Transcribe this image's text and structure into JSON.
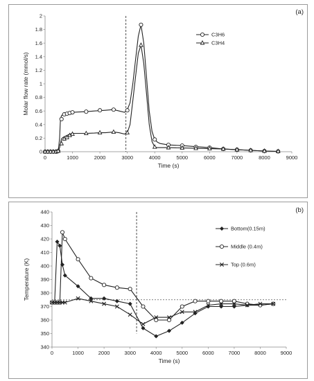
{
  "chart_data": [
    {
      "type": "line",
      "panel_tag": "(a)",
      "xlabel": "Time (s)",
      "ylabel": "Molar flow rate (mmol/s)",
      "xlim": [
        0,
        9000
      ],
      "ylim": [
        0,
        2
      ],
      "xticks": [
        "0",
        "1000",
        "2000",
        "3000",
        "4000",
        "5000",
        "6000",
        "7000",
        "8000",
        "9000"
      ],
      "yticks": [
        "0",
        "0.2",
        "0.4",
        "0.6",
        "0.8",
        "1",
        "1.2",
        "1.4",
        "1.6",
        "1.8",
        "2"
      ],
      "grid": false,
      "legend_position": "top-right",
      "vline_x": 2950,
      "series": [
        {
          "name": "C3H6",
          "marker": "circle",
          "line_x": [
            0,
            450,
            480,
            530,
            560,
            600,
            650,
            700,
            800,
            900,
            1000,
            1200,
            1500,
            1800,
            2000,
            2200,
            2500,
            2700,
            2900,
            3000,
            3100,
            3200,
            3300,
            3400,
            3500,
            3600,
            3700,
            3800,
            3900,
            4000,
            4100,
            4200,
            4500,
            5000,
            5500,
            6000,
            6500,
            7000,
            7500,
            8000,
            8500
          ],
          "line_y": [
            0,
            0,
            0.01,
            0.2,
            0.48,
            0.53,
            0.55,
            0.56,
            0.57,
            0.58,
            0.58,
            0.585,
            0.59,
            0.6,
            0.605,
            0.61,
            0.62,
            0.6,
            0.58,
            0.62,
            0.72,
            1.0,
            1.35,
            1.7,
            1.87,
            1.6,
            1.1,
            0.6,
            0.3,
            0.18,
            0.14,
            0.12,
            0.1,
            0.09,
            0.075,
            0.06,
            0.04,
            0.03,
            0.02,
            0.01,
            0.005
          ],
          "points_x": [
            0,
            100,
            200,
            300,
            400,
            480,
            600,
            700,
            800,
            900,
            1000,
            1500,
            2000,
            2500,
            3000,
            3500,
            4000,
            4500,
            5000,
            5500,
            6000,
            6500,
            7000,
            7500,
            8000,
            8500
          ],
          "points_y": [
            0,
            0,
            0,
            0,
            0,
            0.01,
            0.48,
            0.55,
            0.56,
            0.57,
            0.58,
            0.59,
            0.61,
            0.62,
            0.61,
            1.87,
            0.18,
            0.1,
            0.09,
            0.07,
            0.06,
            0.04,
            0.03,
            0.02,
            0.01,
            0.005
          ]
        },
        {
          "name": "C3H4",
          "marker": "triangle",
          "line_x": [
            0,
            450,
            480,
            530,
            560,
            600,
            650,
            700,
            800,
            900,
            1000,
            1200,
            1500,
            1800,
            2000,
            2200,
            2500,
            2700,
            2900,
            3000,
            3100,
            3200,
            3300,
            3400,
            3500,
            3600,
            3700,
            3800,
            3900,
            4000,
            4100,
            4200,
            4500,
            5000,
            5500,
            6000,
            6500,
            7000,
            7500,
            8000,
            8500
          ],
          "line_y": [
            0,
            0,
            0.01,
            0.06,
            0.12,
            0.19,
            0.21,
            0.22,
            0.24,
            0.26,
            0.27,
            0.27,
            0.27,
            0.275,
            0.28,
            0.28,
            0.29,
            0.28,
            0.26,
            0.28,
            0.4,
            0.75,
            1.1,
            1.45,
            1.57,
            1.3,
            0.85,
            0.4,
            0.15,
            0.07,
            0.06,
            0.06,
            0.06,
            0.055,
            0.05,
            0.045,
            0.04,
            0.03,
            0.02,
            0.01,
            0.005
          ],
          "points_x": [
            0,
            100,
            200,
            300,
            400,
            480,
            600,
            700,
            800,
            900,
            1000,
            1500,
            2000,
            2500,
            3000,
            3500,
            4000,
            4500,
            5000,
            5500,
            6000,
            6500,
            7000,
            7500,
            8000,
            8500
          ],
          "points_y": [
            0,
            0,
            0,
            0,
            0,
            0.01,
            0.12,
            0.19,
            0.21,
            0.24,
            0.26,
            0.27,
            0.28,
            0.29,
            0.28,
            1.57,
            0.07,
            0.06,
            0.055,
            0.05,
            0.045,
            0.04,
            0.03,
            0.02,
            0.01,
            0.005
          ]
        }
      ]
    },
    {
      "type": "line",
      "panel_tag": "(b)",
      "xlabel": "Time (s)",
      "ylabel": "Temperature (K)",
      "xlim": [
        0,
        9000
      ],
      "ylim": [
        340,
        440
      ],
      "xticks": [
        "0",
        "1000",
        "2000",
        "3000",
        "4000",
        "5000",
        "6000",
        "7000",
        "8000",
        "9000"
      ],
      "yticks": [
        "340",
        "350",
        "360",
        "370",
        "380",
        "390",
        "400",
        "410",
        "420",
        "430",
        "440"
      ],
      "grid": false,
      "legend_position": "top-right",
      "vline_x": 3250,
      "hline_y": 375,
      "series": [
        {
          "name": "Bottom(0.15m)",
          "marker": "diamond",
          "line_x": [
            0,
            100,
            200,
            300,
            400,
            500,
            1000,
            1500,
            2000,
            2500,
            3000,
            3500,
            4000,
            4500,
            5000,
            5500,
            6000,
            6500,
            7000,
            7500,
            8000,
            8500
          ],
          "line_y": [
            373,
            373,
            418,
            415,
            401,
            393,
            385,
            376,
            376,
            374,
            372,
            354,
            348,
            352,
            358,
            365,
            370,
            370,
            370,
            371,
            371,
            372
          ],
          "points_x": [
            0,
            100,
            200,
            300,
            400,
            500,
            1000,
            1500,
            2000,
            2500,
            3000,
            3500,
            4000,
            4500,
            5000,
            5500,
            6000,
            6500,
            7000,
            7500,
            8000,
            8500
          ],
          "points_y": [
            373,
            373,
            418,
            415,
            401,
            393,
            385,
            376,
            376,
            374,
            372,
            354,
            348,
            352,
            358,
            365,
            370,
            370,
            370,
            371,
            371,
            372
          ]
        },
        {
          "name": "Middle (0.4m)",
          "marker": "circle",
          "line_x": [
            0,
            100,
            200,
            300,
            400,
            500,
            1000,
            1500,
            2000,
            2500,
            3000,
            3500,
            4000,
            4500,
            5000,
            5500,
            6000,
            6500,
            7000,
            7500,
            8000,
            8500
          ],
          "line_y": [
            373,
            373,
            373,
            373,
            425,
            420,
            405,
            391,
            386,
            384,
            383,
            370,
            360,
            360,
            370,
            374,
            374,
            374,
            374,
            372,
            371,
            372
          ],
          "points_x": [
            0,
            100,
            200,
            300,
            400,
            500,
            1000,
            1500,
            2000,
            2500,
            3000,
            3500,
            4000,
            4500,
            5000,
            5500,
            6000,
            6500,
            7000,
            7500,
            8000,
            8500
          ],
          "points_y": [
            373,
            373,
            373,
            373,
            425,
            420,
            405,
            391,
            386,
            384,
            383,
            370,
            360,
            360,
            370,
            374,
            374,
            374,
            374,
            372,
            371,
            372
          ]
        },
        {
          "name": "Top (0.6m)",
          "marker": "x",
          "line_x": [
            0,
            100,
            200,
            300,
            400,
            500,
            1000,
            1500,
            2000,
            2500,
            3000,
            3500,
            4000,
            4500,
            5000,
            5500,
            6000,
            6500,
            7000,
            7500,
            8000,
            8500
          ],
          "line_y": [
            373,
            373,
            373,
            373,
            373,
            373,
            376,
            374,
            372,
            370,
            364,
            357,
            362,
            362,
            366,
            366,
            371,
            372,
            372,
            371,
            372,
            372
          ],
          "points_x": [
            0,
            100,
            200,
            300,
            400,
            500,
            1000,
            1500,
            2000,
            2500,
            3000,
            3500,
            4000,
            4500,
            5000,
            5500,
            6000,
            6500,
            7000,
            7500,
            8000,
            8500
          ],
          "points_y": [
            373,
            373,
            373,
            373,
            373,
            373,
            376,
            374,
            372,
            370,
            364,
            357,
            362,
            362,
            366,
            366,
            371,
            372,
            372,
            371,
            372,
            372
          ]
        }
      ]
    }
  ]
}
